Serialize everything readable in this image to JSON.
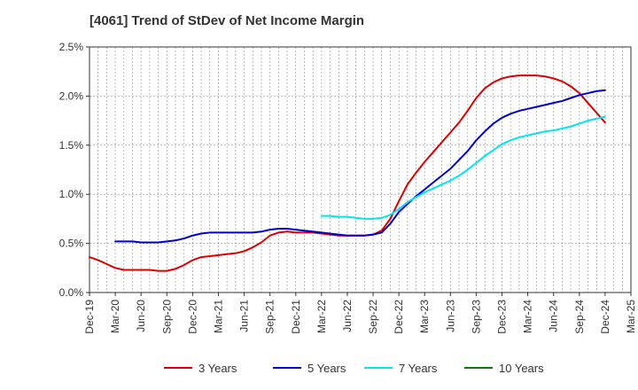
{
  "chart_data": {
    "type": "line",
    "title": "[4061]  Trend of StDev of Net Income Margin",
    "xlabel": "",
    "ylabel": "",
    "x_ticks": [
      "Dec-19",
      "Mar-20",
      "Jun-20",
      "Sep-20",
      "Dec-20",
      "Mar-21",
      "Jun-21",
      "Sep-21",
      "Dec-21",
      "Mar-22",
      "Jun-22",
      "Sep-22",
      "Dec-22",
      "Mar-23",
      "Jun-23",
      "Sep-23",
      "Dec-23",
      "Mar-24",
      "Jun-24",
      "Sep-24",
      "Dec-24",
      "Mar-25"
    ],
    "y_ticks": [
      "0.0%",
      "0.5%",
      "1.0%",
      "1.5%",
      "2.0%",
      "2.5%"
    ],
    "ylim": [
      0,
      2.5
    ],
    "y_unit": "%",
    "grid": true,
    "legend_position": "bottom",
    "series": [
      {
        "name": "3 Years",
        "color": "#dd0000",
        "x": [
          "Dec-19",
          "Jan-20",
          "Feb-20",
          "Mar-20",
          "Apr-20",
          "May-20",
          "Jun-20",
          "Jul-20",
          "Aug-20",
          "Sep-20",
          "Oct-20",
          "Nov-20",
          "Dec-20",
          "Jan-21",
          "Feb-21",
          "Mar-21",
          "Apr-21",
          "May-21",
          "Jun-21",
          "Jul-21",
          "Aug-21",
          "Sep-21",
          "Oct-21",
          "Nov-21",
          "Dec-21",
          "Jan-22",
          "Feb-22",
          "Mar-22",
          "Apr-22",
          "May-22",
          "Jun-22",
          "Jul-22",
          "Aug-22",
          "Sep-22",
          "Oct-22",
          "Nov-22",
          "Dec-22",
          "Jan-23",
          "Feb-23",
          "Mar-23",
          "Apr-23",
          "May-23",
          "Jun-23",
          "Jul-23",
          "Aug-23",
          "Sep-23",
          "Oct-23",
          "Nov-23",
          "Dec-23",
          "Jan-24",
          "Feb-24",
          "Mar-24",
          "Apr-24",
          "May-24",
          "Jun-24",
          "Jul-24",
          "Aug-24",
          "Sep-24",
          "Oct-24",
          "Nov-24",
          "Dec-24"
        ],
        "values": [
          0.36,
          0.33,
          0.29,
          0.25,
          0.23,
          0.23,
          0.23,
          0.23,
          0.22,
          0.22,
          0.24,
          0.28,
          0.33,
          0.36,
          0.37,
          0.38,
          0.39,
          0.4,
          0.42,
          0.46,
          0.51,
          0.58,
          0.61,
          0.62,
          0.61,
          0.61,
          0.61,
          0.6,
          0.59,
          0.58,
          0.58,
          0.58,
          0.58,
          0.59,
          0.63,
          0.75,
          0.93,
          1.1,
          1.22,
          1.33,
          1.43,
          1.53,
          1.63,
          1.73,
          1.85,
          1.98,
          2.08,
          2.14,
          2.18,
          2.2,
          2.21,
          2.21,
          2.21,
          2.2,
          2.18,
          2.15,
          2.1,
          2.03,
          1.93,
          1.83,
          1.73
        ]
      },
      {
        "name": "5 Years",
        "color": "#0000cc",
        "x": [
          "Mar-20",
          "Apr-20",
          "May-20",
          "Jun-20",
          "Jul-20",
          "Aug-20",
          "Sep-20",
          "Oct-20",
          "Nov-20",
          "Dec-20",
          "Jan-21",
          "Feb-21",
          "Mar-21",
          "Apr-21",
          "May-21",
          "Jun-21",
          "Jul-21",
          "Aug-21",
          "Sep-21",
          "Oct-21",
          "Nov-21",
          "Dec-21",
          "Jan-22",
          "Feb-22",
          "Mar-22",
          "Apr-22",
          "May-22",
          "Jun-22",
          "Jul-22",
          "Aug-22",
          "Sep-22",
          "Oct-22",
          "Nov-22",
          "Dec-22",
          "Jan-23",
          "Feb-23",
          "Mar-23",
          "Apr-23",
          "May-23",
          "Jun-23",
          "Jul-23",
          "Aug-23",
          "Sep-23",
          "Oct-23",
          "Nov-23",
          "Dec-23",
          "Jan-24",
          "Feb-24",
          "Mar-24",
          "Apr-24",
          "May-24",
          "Jun-24",
          "Jul-24",
          "Aug-24",
          "Sep-24",
          "Oct-24",
          "Nov-24",
          "Dec-24"
        ],
        "values": [
          0.52,
          0.52,
          0.52,
          0.51,
          0.51,
          0.51,
          0.52,
          0.53,
          0.55,
          0.58,
          0.6,
          0.61,
          0.61,
          0.61,
          0.61,
          0.61,
          0.61,
          0.62,
          0.64,
          0.65,
          0.65,
          0.64,
          0.63,
          0.62,
          0.61,
          0.6,
          0.59,
          0.58,
          0.58,
          0.58,
          0.59,
          0.61,
          0.7,
          0.82,
          0.9,
          0.98,
          1.05,
          1.12,
          1.19,
          1.26,
          1.35,
          1.44,
          1.55,
          1.64,
          1.72,
          1.78,
          1.82,
          1.85,
          1.87,
          1.89,
          1.91,
          1.93,
          1.95,
          1.98,
          2.01,
          2.03,
          2.05,
          2.06
        ]
      },
      {
        "name": "7 Years",
        "color": "#00e5ee",
        "x": [
          "Mar-22",
          "Apr-22",
          "May-22",
          "Jun-22",
          "Jul-22",
          "Aug-22",
          "Sep-22",
          "Oct-22",
          "Nov-22",
          "Dec-22",
          "Jan-23",
          "Feb-23",
          "Mar-23",
          "Apr-23",
          "May-23",
          "Jun-23",
          "Jul-23",
          "Aug-23",
          "Sep-23",
          "Oct-23",
          "Nov-23",
          "Dec-23",
          "Jan-24",
          "Feb-24",
          "Mar-24",
          "Apr-24",
          "May-24",
          "Jun-24",
          "Jul-24",
          "Aug-24",
          "Sep-24",
          "Oct-24",
          "Nov-24",
          "Dec-24"
        ],
        "values": [
          0.78,
          0.78,
          0.77,
          0.77,
          0.76,
          0.75,
          0.75,
          0.76,
          0.79,
          0.85,
          0.92,
          0.97,
          1.02,
          1.06,
          1.1,
          1.14,
          1.19,
          1.25,
          1.32,
          1.39,
          1.45,
          1.51,
          1.55,
          1.58,
          1.6,
          1.62,
          1.64,
          1.65,
          1.67,
          1.69,
          1.72,
          1.75,
          1.77,
          1.79
        ]
      },
      {
        "name": "10 Years",
        "color": "#008000",
        "x": [],
        "values": []
      }
    ]
  }
}
